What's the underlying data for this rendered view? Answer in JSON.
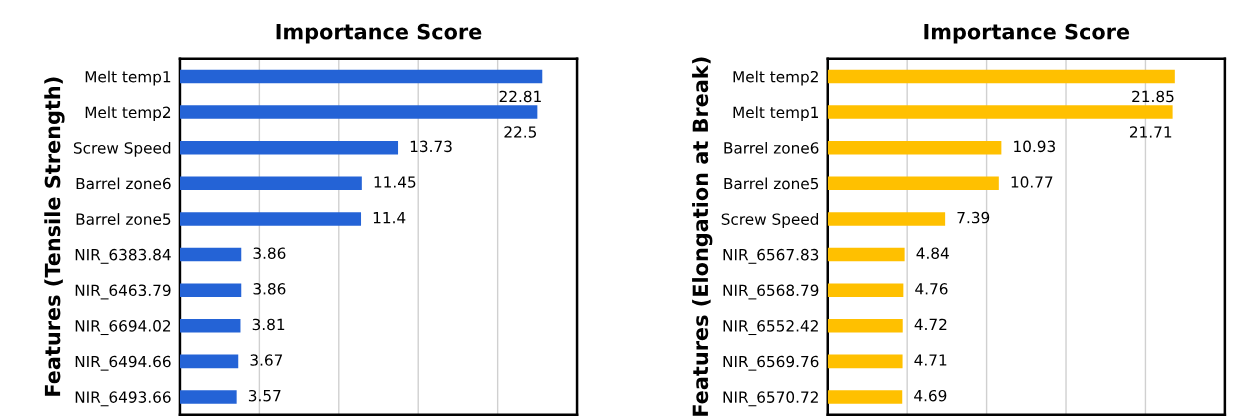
{
  "chart_data": [
    {
      "type": "bar",
      "orientation": "horizontal",
      "title": "Importance Score",
      "ylabel": "Features (Tensile Strength)",
      "categories": [
        "Melt temp1",
        "Melt temp2",
        "Screw Speed",
        "Barrel zone6",
        "Barrel zone5",
        "NIR_6383.84",
        "NIR_6463.79",
        "NIR_6694.02",
        "NIR_6494.66",
        "NIR_6493.66"
      ],
      "values": [
        22.81,
        22.5,
        13.73,
        11.45,
        11.4,
        3.86,
        3.86,
        3.81,
        3.67,
        3.57
      ],
      "color": "#2463d6",
      "xlim": [
        0,
        25
      ],
      "xticks": [
        {
          "value": 0,
          "label": null
        },
        {
          "value": 5,
          "label": null
        },
        {
          "value": 10,
          "label": null
        },
        {
          "value": 15,
          "label": null
        },
        {
          "value": 20,
          "label": null
        },
        {
          "value": 25,
          "label": null
        }
      ],
      "grid": "x",
      "data_labels": true,
      "tick_labels": "y"
    },
    {
      "type": "bar",
      "orientation": "horizontal",
      "title": "Importance Score",
      "ylabel": "Features (Elongation at Break)",
      "categories": [
        "Melt temp2",
        "Melt temp1",
        "Barrel zone6",
        "Barrel zone5",
        "Screw Speed",
        "NIR_6567.83",
        "NIR_6568.79",
        "NIR_6552.42",
        "NIR_6569.76",
        "NIR_6570.72"
      ],
      "values": [
        21.85,
        21.71,
        10.93,
        10.77,
        7.39,
        4.84,
        4.76,
        4.72,
        4.71,
        4.69
      ],
      "color": "#ffc000",
      "xlim": [
        0,
        25
      ],
      "xticks": [
        {
          "value": 0,
          "label": null
        },
        {
          "value": 5,
          "label": null
        },
        {
          "value": 10,
          "label": null
        },
        {
          "value": 15,
          "label": null
        },
        {
          "value": 20,
          "label": null
        },
        {
          "value": 25,
          "label": null
        }
      ],
      "grid": "x",
      "data_labels": true,
      "tick_labels": "y"
    }
  ]
}
